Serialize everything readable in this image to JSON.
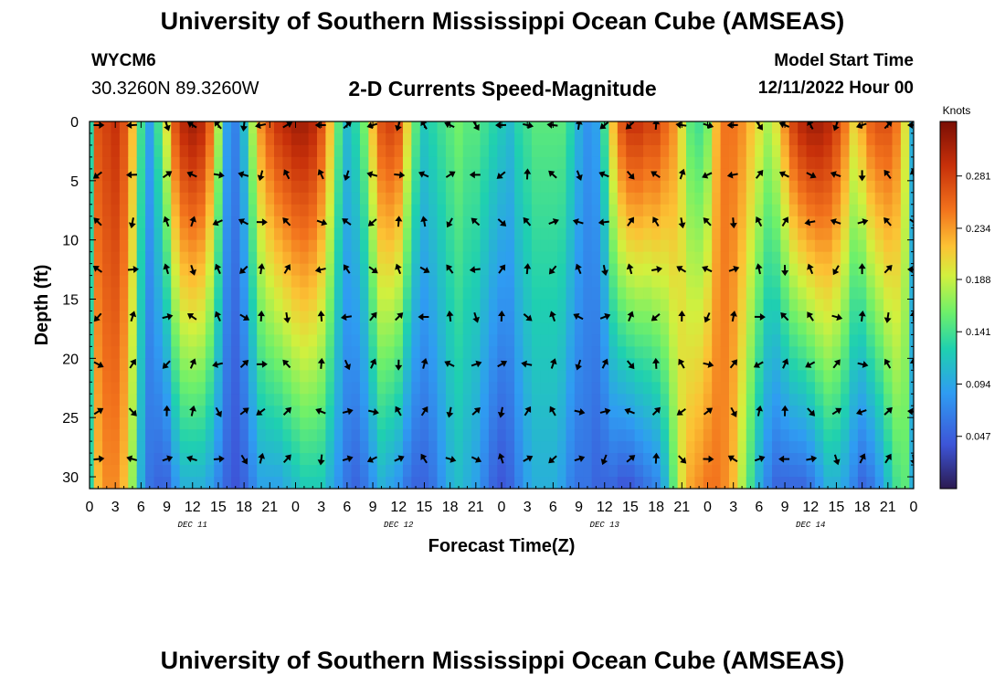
{
  "header": {
    "title": "University of Southern Mississippi Ocean Cube (AMSEAS)",
    "station_id": "WYCM6",
    "station_location": "30.3260N  89.3260W",
    "subtitle": "2-D Currents Speed-Magnitude",
    "model_start_label": "Model Start Time",
    "model_start_value": "12/11/2022 Hour 00"
  },
  "footer": {
    "title": "University of Southern Mississippi Ocean Cube (AMSEAS)"
  },
  "chart_data": {
    "type": "heatmap",
    "title": "2-D Currents Speed-Magnitude",
    "xlabel": "Forecast Time(Z)",
    "ylabel": "Depth (ft)",
    "x_hours_range": [
      0,
      96
    ],
    "ylim": [
      0,
      31
    ],
    "y_ticks": [
      "0",
      "5",
      "10",
      "15",
      "20",
      "25",
      "30"
    ],
    "x_tick_labels": [
      "0",
      "3",
      "6",
      "9",
      "12",
      "15",
      "18",
      "21",
      "0",
      "3",
      "6",
      "9",
      "12",
      "15",
      "18",
      "21",
      "0",
      "3",
      "6",
      "9",
      "12",
      "15",
      "18",
      "21",
      "0",
      "3",
      "6",
      "9",
      "12",
      "15",
      "18",
      "21",
      "0"
    ],
    "day_labels": [
      {
        "label": "DEC 11",
        "hour": 12
      },
      {
        "label": "DEC 12",
        "hour": 36
      },
      {
        "label": "DEC 13",
        "hour": 60
      },
      {
        "label": "DEC 14",
        "hour": 84
      }
    ],
    "colorbar": {
      "unit": "Knots",
      "range": [
        0.0,
        0.33
      ],
      "ticks": [
        "0.281",
        "0.234",
        "0.188",
        "0.141",
        "0.094",
        "0.047"
      ],
      "tick_values": [
        0.281,
        0.234,
        0.188,
        0.141,
        0.094,
        0.047
      ]
    },
    "speed_profile": {
      "hours": [
        0,
        1,
        2,
        3,
        4,
        5,
        6,
        7,
        8,
        9,
        10,
        11,
        12,
        13,
        14,
        15,
        16,
        17,
        18,
        19,
        20,
        21,
        22,
        23,
        24,
        25,
        26,
        27,
        28,
        29,
        30,
        31,
        32,
        33,
        34,
        35,
        36,
        37,
        38,
        39,
        40,
        41,
        42,
        43,
        44,
        45,
        46,
        47,
        48,
        49,
        50,
        51,
        52,
        53,
        54,
        55,
        56,
        57,
        58,
        59,
        60,
        61,
        62,
        63,
        64,
        65,
        66,
        67,
        68,
        69,
        70,
        71,
        72,
        73,
        74,
        75,
        76,
        77,
        78,
        79,
        80,
        81,
        82,
        83,
        84,
        85,
        86,
        87,
        88,
        89,
        90,
        91,
        92,
        93,
        94,
        95,
        96
      ],
      "surface": [
        0.13,
        0.27,
        0.28,
        0.29,
        0.27,
        0.22,
        0.14,
        0.09,
        0.14,
        0.2,
        0.27,
        0.3,
        0.31,
        0.3,
        0.26,
        0.18,
        0.09,
        0.07,
        0.11,
        0.18,
        0.24,
        0.27,
        0.29,
        0.3,
        0.31,
        0.31,
        0.3,
        0.27,
        0.22,
        0.15,
        0.11,
        0.13,
        0.16,
        0.22,
        0.27,
        0.28,
        0.27,
        0.21,
        0.15,
        0.12,
        0.13,
        0.14,
        0.15,
        0.16,
        0.15,
        0.15,
        0.14,
        0.13,
        0.12,
        0.11,
        0.13,
        0.14,
        0.15,
        0.15,
        0.15,
        0.15,
        0.13,
        0.1,
        0.08,
        0.09,
        0.14,
        0.22,
        0.27,
        0.29,
        0.29,
        0.28,
        0.28,
        0.26,
        0.24,
        0.2,
        0.15,
        0.14,
        0.16,
        0.22,
        0.25,
        0.25,
        0.24,
        0.22,
        0.2,
        0.18,
        0.2,
        0.24,
        0.28,
        0.3,
        0.31,
        0.31,
        0.3,
        0.28,
        0.25,
        0.21,
        0.23,
        0.26,
        0.27,
        0.27,
        0.25,
        0.2,
        0.1
      ],
      "bottom": [
        0.13,
        0.22,
        0.24,
        0.24,
        0.22,
        0.17,
        0.1,
        0.06,
        0.05,
        0.05,
        0.08,
        0.1,
        0.1,
        0.1,
        0.09,
        0.07,
        0.05,
        0.04,
        0.05,
        0.07,
        0.09,
        0.09,
        0.09,
        0.1,
        0.11,
        0.12,
        0.12,
        0.12,
        0.1,
        0.08,
        0.06,
        0.05,
        0.06,
        0.08,
        0.1,
        0.09,
        0.08,
        0.06,
        0.05,
        0.05,
        0.06,
        0.08,
        0.1,
        0.11,
        0.1,
        0.09,
        0.07,
        0.05,
        0.04,
        0.05,
        0.07,
        0.09,
        0.1,
        0.1,
        0.1,
        0.09,
        0.07,
        0.06,
        0.06,
        0.05,
        0.05,
        0.05,
        0.04,
        0.04,
        0.05,
        0.06,
        0.07,
        0.1,
        0.15,
        0.2,
        0.23,
        0.24,
        0.25,
        0.25,
        0.24,
        0.22,
        0.18,
        0.14,
        0.1,
        0.07,
        0.05,
        0.05,
        0.05,
        0.05,
        0.06,
        0.08,
        0.1,
        0.1,
        0.09,
        0.07,
        0.05,
        0.06,
        0.08,
        0.11,
        0.14,
        0.15,
        0.1
      ],
      "note": "approximate current speed (knots) read from the shading at the top (0 ft) and bottom (31 ft) of the panel; intermediate depths vary between these"
    },
    "arrows": {
      "hours": [
        1,
        5,
        9,
        12,
        15,
        18,
        20,
        23,
        27,
        30,
        33,
        36,
        39,
        42,
        45,
        48,
        51,
        54,
        57,
        60,
        63,
        66,
        69,
        72,
        75,
        78,
        81,
        84,
        87,
        90,
        93,
        96
      ],
      "depths_ft": [
        0,
        4.5,
        8.5,
        12.5,
        16.5,
        20.5,
        24.5,
        28.5
      ],
      "note": "black direction arrows on a regular grid; direction is drawn per point"
    }
  }
}
